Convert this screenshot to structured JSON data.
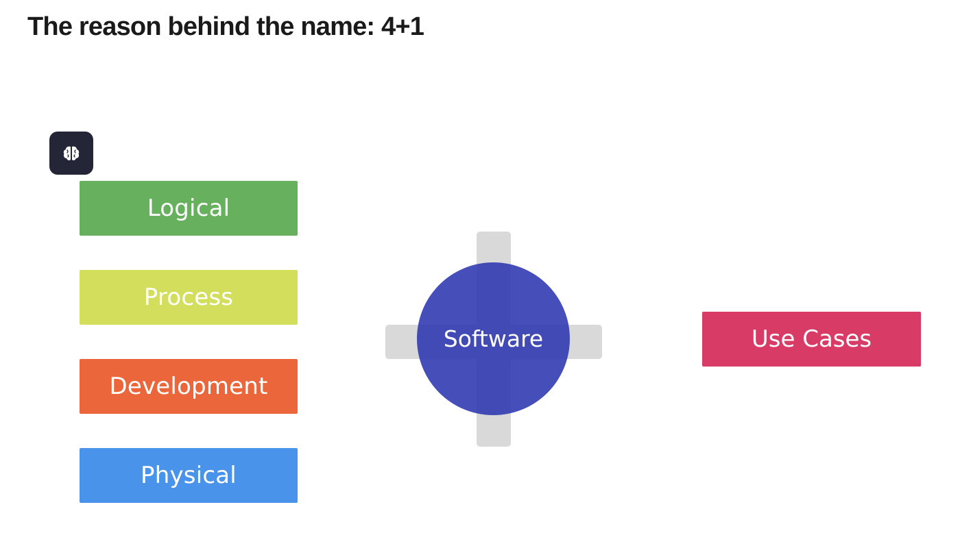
{
  "heading": "The reason behind the name: 4+1",
  "badge": {
    "icon": "brain-icon"
  },
  "views": [
    {
      "label": "Logical",
      "color": "#66b05e"
    },
    {
      "label": "Process",
      "color": "#d2de5c"
    },
    {
      "label": "Development",
      "color": "#eb663b"
    },
    {
      "label": "Physical",
      "color": "#4a93ea"
    }
  ],
  "center": {
    "label": "Software",
    "color": "#3440b0"
  },
  "plus_one": {
    "label": "Use Cases",
    "color": "#d73b66"
  }
}
